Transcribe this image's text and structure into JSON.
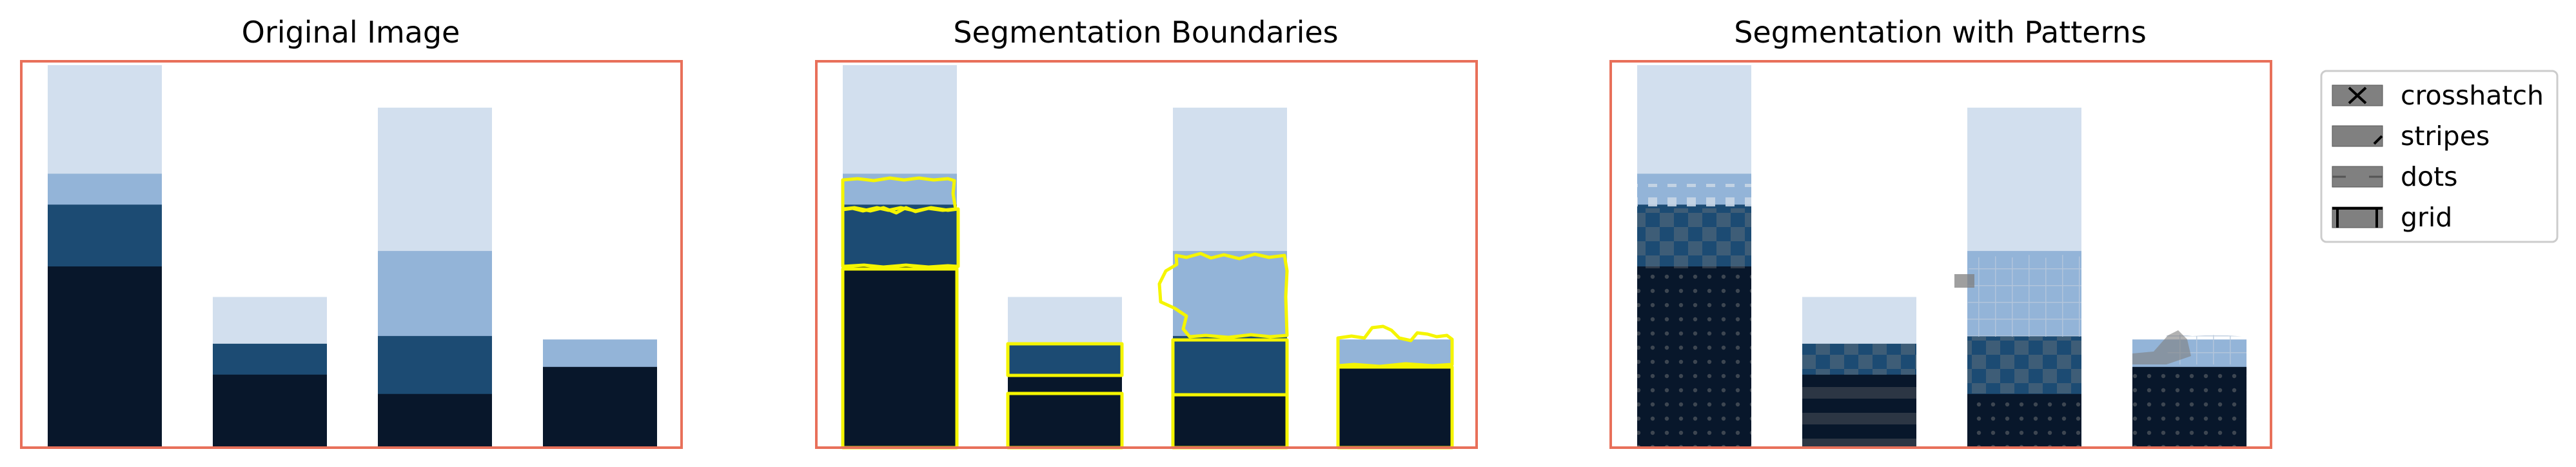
{
  "colors": {
    "frame": "#e8705a",
    "boundary": "#f5f500",
    "pattern_overlay": "#7f7f7f",
    "legend_border": "#cccccc"
  },
  "chart_data": [
    {
      "type": "bar",
      "title": "Original Image",
      "xlabel": "",
      "ylabel": "",
      "axes_visible": false,
      "ylim": [
        0,
        1
      ],
      "categories": [
        "",
        "",
        "",
        ""
      ],
      "series": [
        {
          "color": "#08172b",
          "values": [
            0.47,
            0.19,
            0.14,
            0.21
          ]
        },
        {
          "color": "#1c4b73",
          "values": [
            0.16,
            0.08,
            0.15,
            0.0
          ]
        },
        {
          "color": "#93b4d8",
          "values": [
            0.08,
            0.0,
            0.22,
            0.07
          ]
        },
        {
          "color": "#d2dfee",
          "values": [
            0.28,
            0.12,
            0.37,
            0.0
          ]
        }
      ]
    },
    {
      "type": "bar",
      "title": "Segmentation Boundaries",
      "xlabel": "",
      "ylabel": "",
      "axes_visible": false,
      "overlay": "segmentation boundaries",
      "ylim": [
        0,
        1
      ],
      "categories": [
        "",
        "",
        "",
        ""
      ],
      "series": [
        {
          "color": "#08172b",
          "values": [
            0.47,
            0.19,
            0.14,
            0.21
          ]
        },
        {
          "color": "#1c4b73",
          "values": [
            0.16,
            0.08,
            0.15,
            0.0
          ]
        },
        {
          "color": "#93b4d8",
          "values": [
            0.08,
            0.0,
            0.22,
            0.07
          ]
        },
        {
          "color": "#d2dfee",
          "values": [
            0.28,
            0.12,
            0.37,
            0.0
          ]
        }
      ]
    },
    {
      "type": "bar",
      "title": "Segmentation with Patterns",
      "xlabel": "",
      "ylabel": "",
      "axes_visible": false,
      "overlay": "segment patterns",
      "ylim": [
        0,
        1
      ],
      "categories": [
        "",
        "",
        "",
        ""
      ],
      "series": [
        {
          "color": "#08172b",
          "values": [
            0.47,
            0.19,
            0.14,
            0.21
          ]
        },
        {
          "color": "#1c4b73",
          "values": [
            0.16,
            0.08,
            0.15,
            0.0
          ]
        },
        {
          "color": "#93b4d8",
          "values": [
            0.08,
            0.0,
            0.22,
            0.07
          ]
        },
        {
          "color": "#d2dfee",
          "values": [
            0.28,
            0.12,
            0.37,
            0.0
          ]
        }
      ],
      "legend": {
        "placement": "outside-right",
        "entries": [
          "crosshatch",
          "stripes",
          "dots",
          "grid"
        ]
      }
    }
  ]
}
